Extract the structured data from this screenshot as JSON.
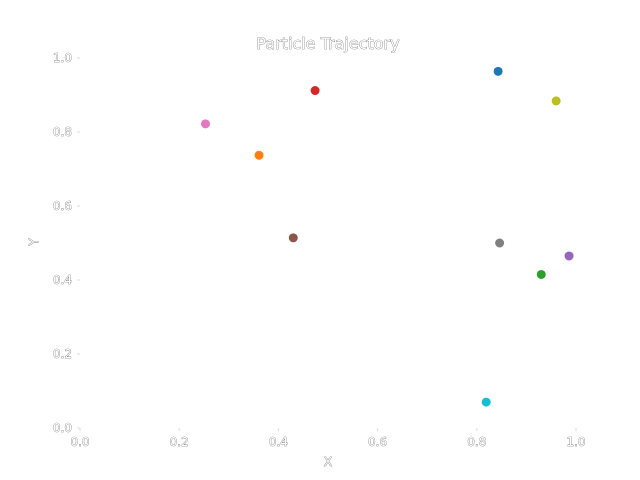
{
  "chart_data": {
    "type": "scatter",
    "title": "Particle Trajectory",
    "xlabel": "X",
    "ylabel": "Y",
    "xlim": [
      0.0,
      1.0
    ],
    "ylim": [
      0.0,
      1.0
    ],
    "xticks": [
      "0.0",
      "0.2",
      "0.4",
      "0.6",
      "0.8",
      "1.0"
    ],
    "yticks": [
      "0.0",
      "0.2",
      "0.4",
      "0.6",
      "0.8",
      "1.0"
    ],
    "grid": false,
    "points": [
      {
        "x": 0.843,
        "y": 0.964,
        "color": "#1f77b4"
      },
      {
        "x": 0.361,
        "y": 0.737,
        "color": "#ff7f0e"
      },
      {
        "x": 0.93,
        "y": 0.415,
        "color": "#2ca02c"
      },
      {
        "x": 0.474,
        "y": 0.912,
        "color": "#d62728"
      },
      {
        "x": 0.986,
        "y": 0.465,
        "color": "#9467bd"
      },
      {
        "x": 0.43,
        "y": 0.514,
        "color": "#8c564b"
      },
      {
        "x": 0.253,
        "y": 0.822,
        "color": "#e377c2"
      },
      {
        "x": 0.846,
        "y": 0.5,
        "color": "#7f7f7f"
      },
      {
        "x": 0.96,
        "y": 0.884,
        "color": "#bcbd22"
      },
      {
        "x": 0.819,
        "y": 0.07,
        "color": "#17becf"
      }
    ]
  }
}
